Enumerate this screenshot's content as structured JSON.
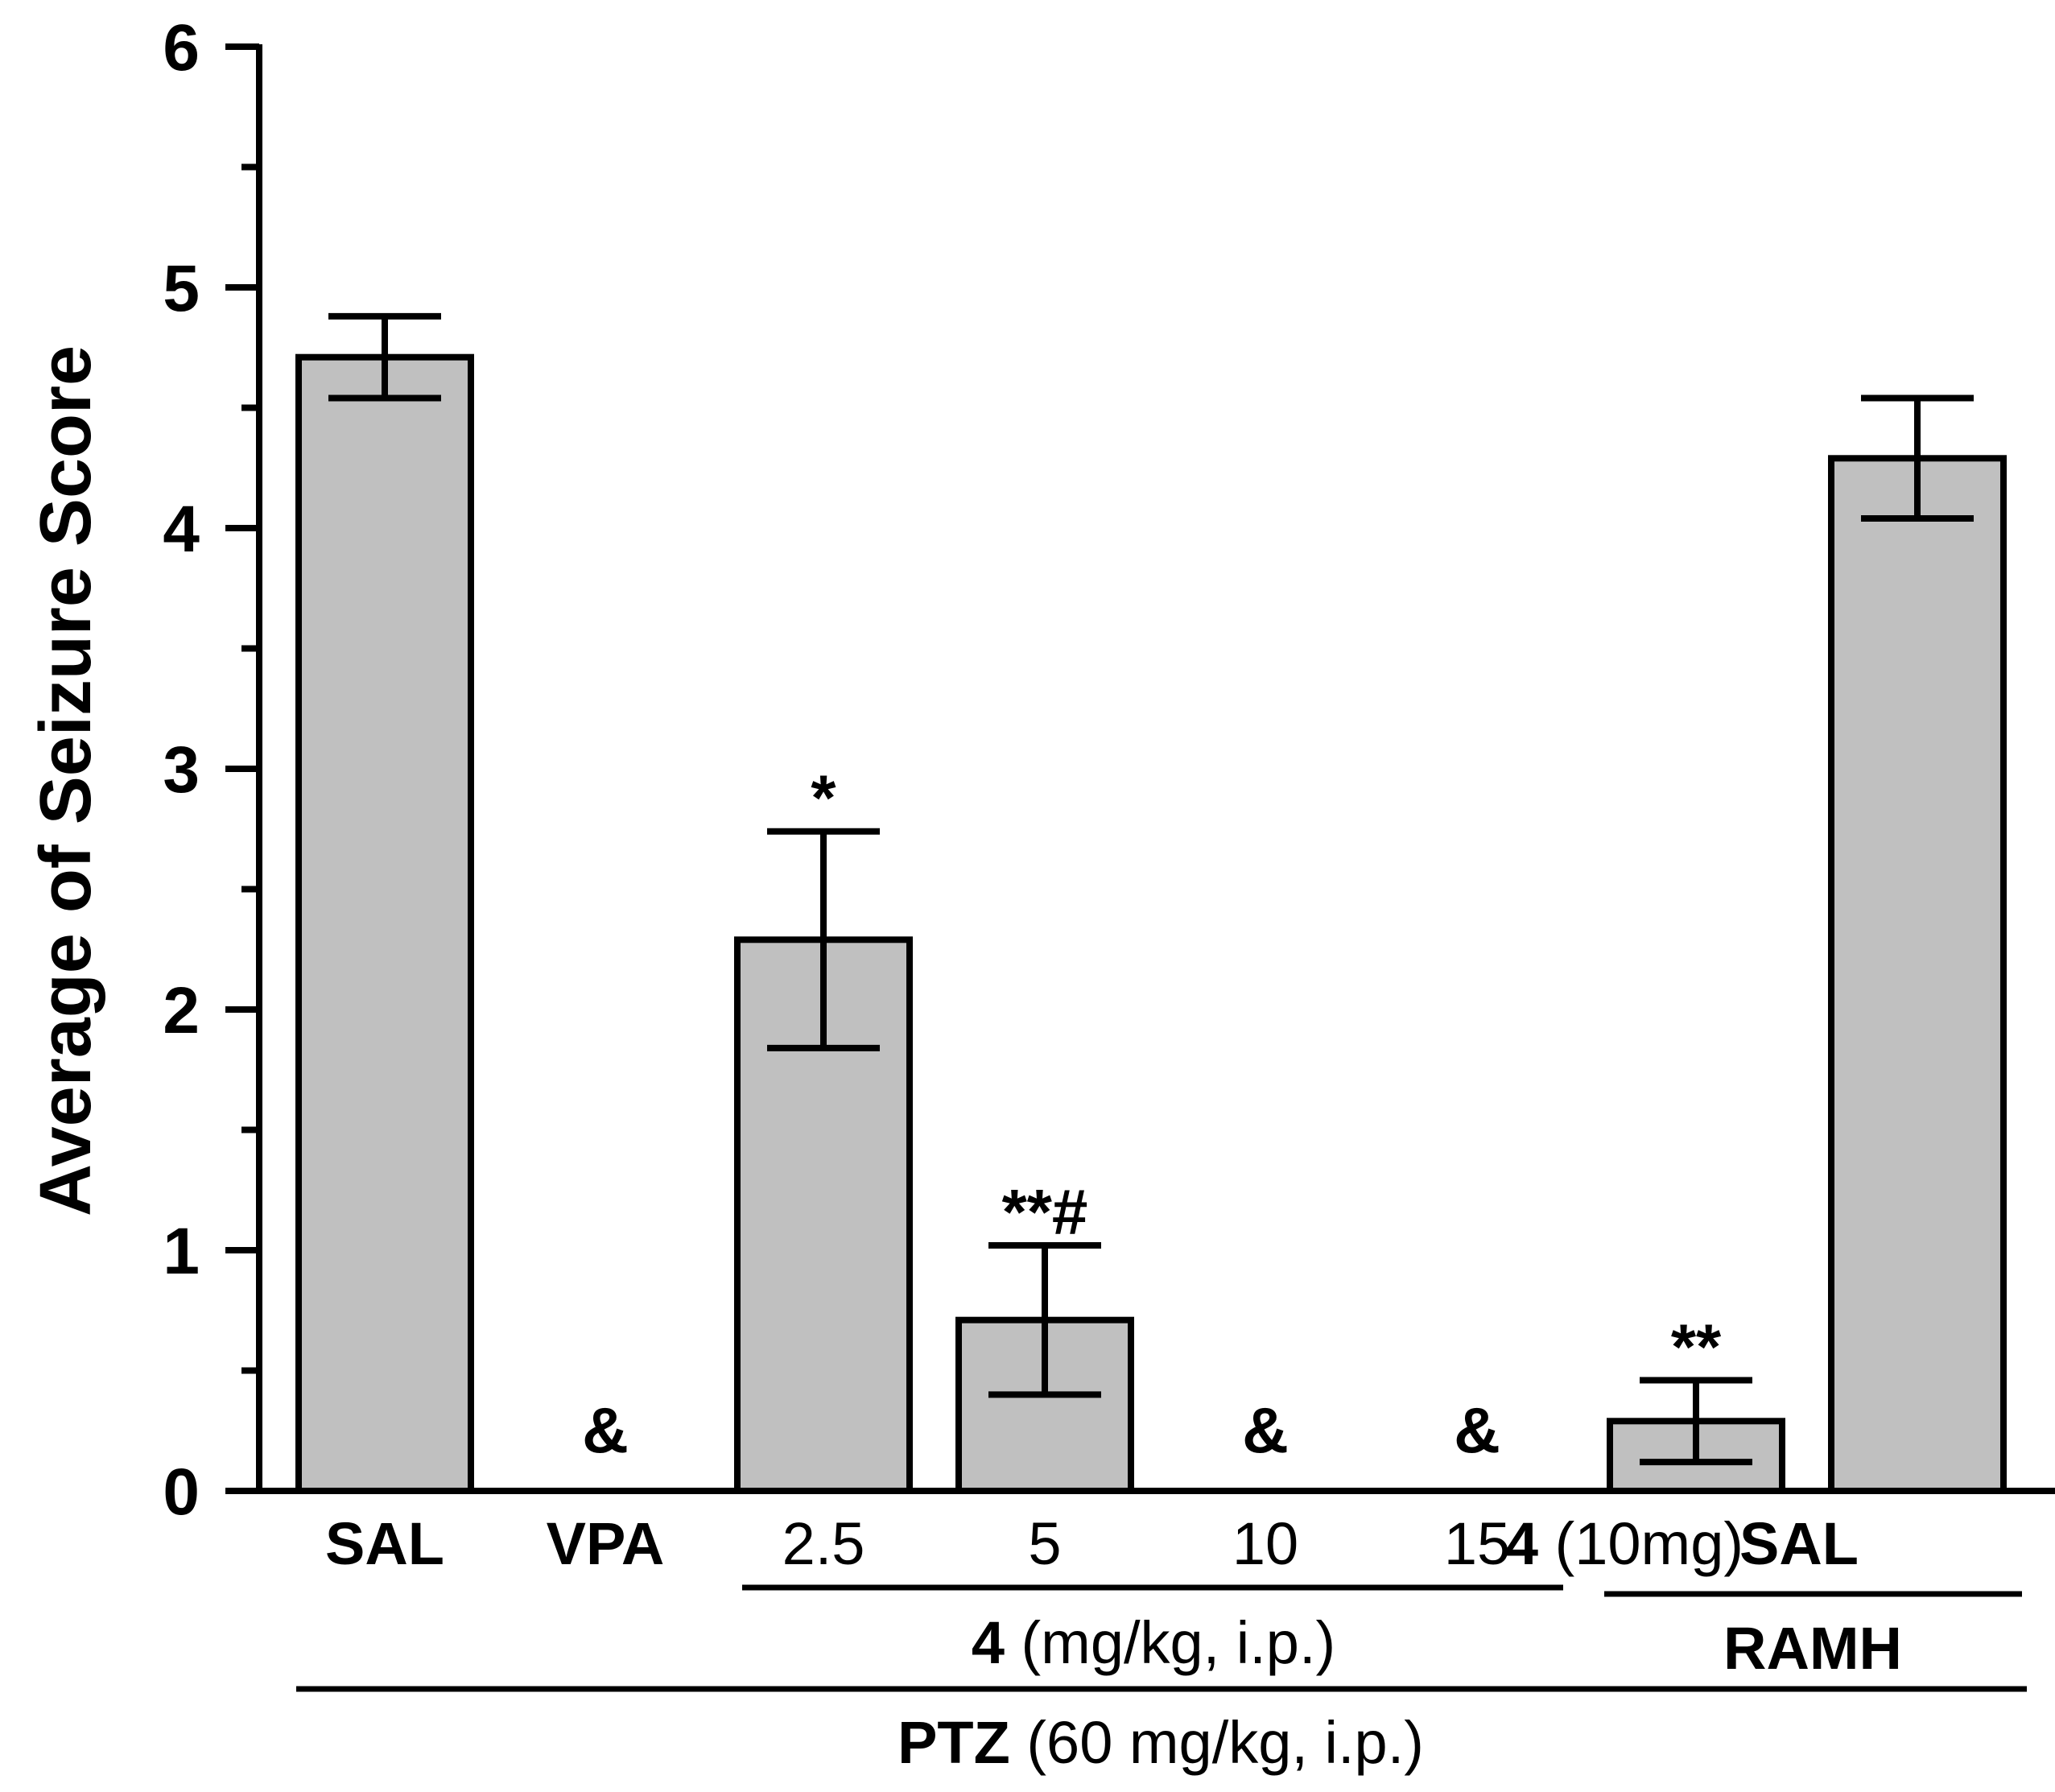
{
  "chart_data": {
    "type": "bar",
    "ylabel": "Average of Seizure Score",
    "ylim": [
      0,
      6
    ],
    "yticks": [
      0,
      1,
      2,
      3,
      4,
      5,
      6
    ],
    "bar_color": "#c0c0c0",
    "categories": [
      "SAL",
      "VPA",
      "2.5",
      "5",
      "10",
      "15",
      "4 (10mg)",
      "SAL"
    ],
    "category_labels": [
      {
        "bold": "SAL",
        "normal": ""
      },
      {
        "bold": "VPA",
        "normal": ""
      },
      {
        "bold": "",
        "normal": "2.5"
      },
      {
        "bold": "",
        "normal": "5"
      },
      {
        "bold": "",
        "normal": "10"
      },
      {
        "bold": "",
        "normal": "15"
      },
      {
        "bold": "4",
        "normal": " (10mg)"
      },
      {
        "bold": "SAL",
        "normal": ""
      }
    ],
    "values": [
      4.71,
      0,
      2.29,
      0.71,
      0,
      0,
      0.29,
      4.29
    ],
    "errors": [
      0.17,
      0,
      0.45,
      0.31,
      0,
      0,
      0.17,
      0.25
    ],
    "annotations": [
      "",
      "&",
      "*",
      "**#",
      "&",
      "&",
      "**",
      ""
    ],
    "groups": [
      {
        "bold": "4",
        "normal": " (mg/kg, i.p.)"
      },
      {
        "bold": "RAMH",
        "normal": ""
      },
      {
        "bold": "PTZ",
        "normal": " (60 mg/kg, i.p.)"
      }
    ]
  }
}
